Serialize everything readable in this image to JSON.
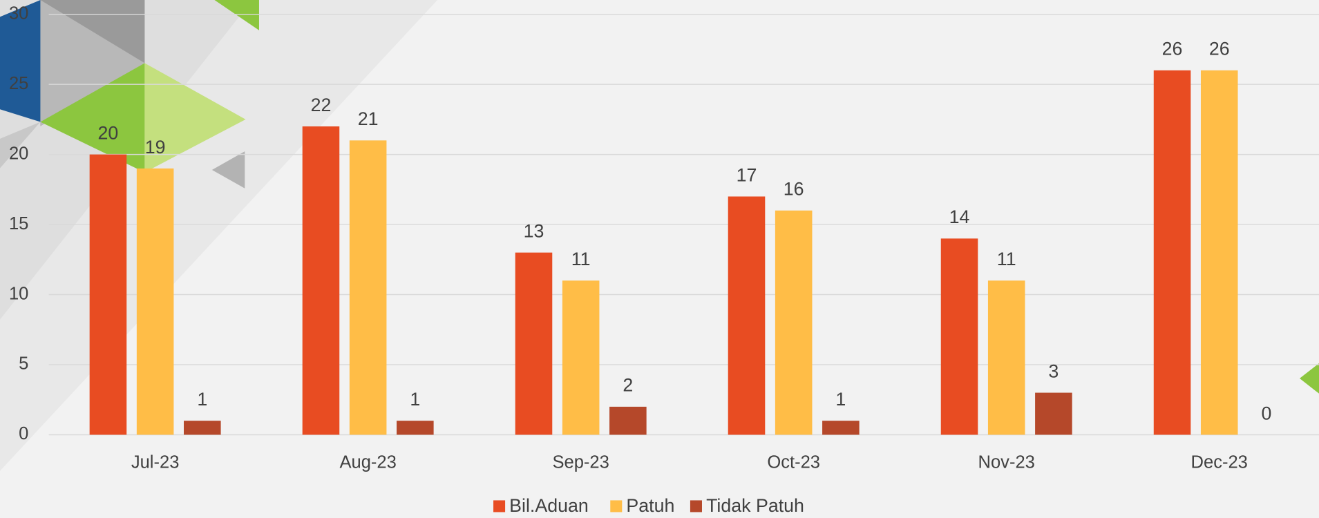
{
  "chart_data": {
    "type": "bar",
    "categories": [
      "Jul-23",
      "Aug-23",
      "Sep-23",
      "Oct-23",
      "Nov-23",
      "Dec-23"
    ],
    "series": [
      {
        "name": "Bil.Aduan",
        "color": "#e84c22",
        "values": [
          20,
          22,
          13,
          17,
          14,
          26
        ]
      },
      {
        "name": "Patuh",
        "color": "#ffbd47",
        "values": [
          19,
          21,
          11,
          16,
          11,
          26
        ]
      },
      {
        "name": "Tidak Patuh",
        "color": "#b5482a",
        "values": [
          1,
          1,
          2,
          1,
          3,
          0
        ]
      }
    ],
    "ylim": [
      0,
      30
    ],
    "yticks": [
      0,
      5,
      10,
      15,
      20,
      25,
      30
    ],
    "grid": true,
    "legend": "bottom"
  }
}
